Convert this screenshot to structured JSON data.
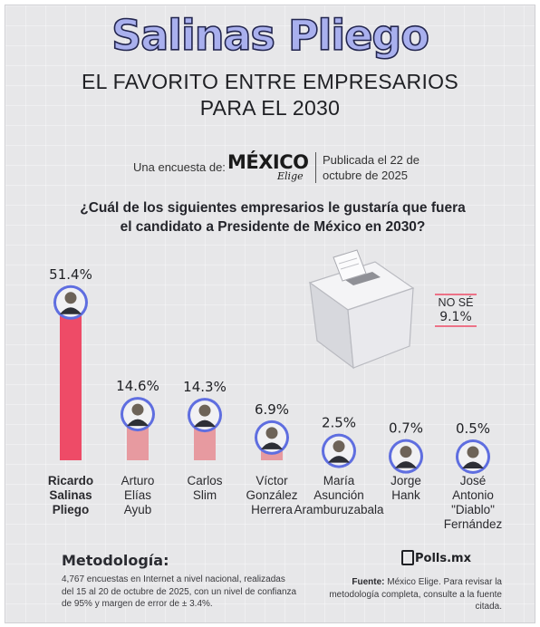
{
  "header": {
    "title": "Salinas Pliego",
    "subtitle_line1": "EL FAVORITO ENTRE EMPRESARIOS",
    "subtitle_line2": "PARA EL 2030"
  },
  "source": {
    "label": "Una encuesta de:",
    "logo_main": "MÉXICO",
    "logo_sub": "Elige",
    "date_text": "Publicada el 22 de octubre de 2025"
  },
  "question": "¿Cuál de los siguientes empresarios le gustaría que fuera el candidato a Presidente de México en 2030?",
  "chart_data": {
    "type": "bar",
    "categories": [
      [
        "Ricardo",
        "Salinas",
        "Pliego"
      ],
      [
        "Arturo",
        "Elías",
        "Ayub"
      ],
      [
        "Carlos",
        "Slim"
      ],
      [
        "Víctor",
        "González",
        "Herrera"
      ],
      [
        "María",
        "Asunción",
        "Aramburuzabala"
      ],
      [
        "Jorge",
        "Hank"
      ],
      [
        "José",
        "Antonio",
        "\"Diablo\"",
        "Fernández"
      ]
    ],
    "values": [
      51.4,
      14.6,
      14.3,
      6.9,
      2.5,
      0.7,
      0.5
    ],
    "value_labels": [
      "51.4%",
      "14.6%",
      "14.3%",
      "6.9%",
      "2.5%",
      "0.7%",
      "0.5%"
    ],
    "highlight_index": 0,
    "colors": {
      "highlight": "#ee4b67",
      "other": "#e79aa0",
      "avatar_ring": "#5f6ee0"
    },
    "no_se": {
      "label": "NO SÉ",
      "value": 9.1,
      "value_label": "9.1%"
    }
  },
  "methodology": {
    "title": "Metodología:",
    "text": "4,767 encuestas en Internet a nivel nacional, realizadas del 15 al 20 de octubre de 2025, con un nivel de confianza de 95% y margen de error de ± 3.4%."
  },
  "footer": {
    "brand": "Polls.mx",
    "fuente_label": "Fuente:",
    "fuente_text": " México Elige. Para revisar la metodología completa, consulte a la fuente citada."
  }
}
